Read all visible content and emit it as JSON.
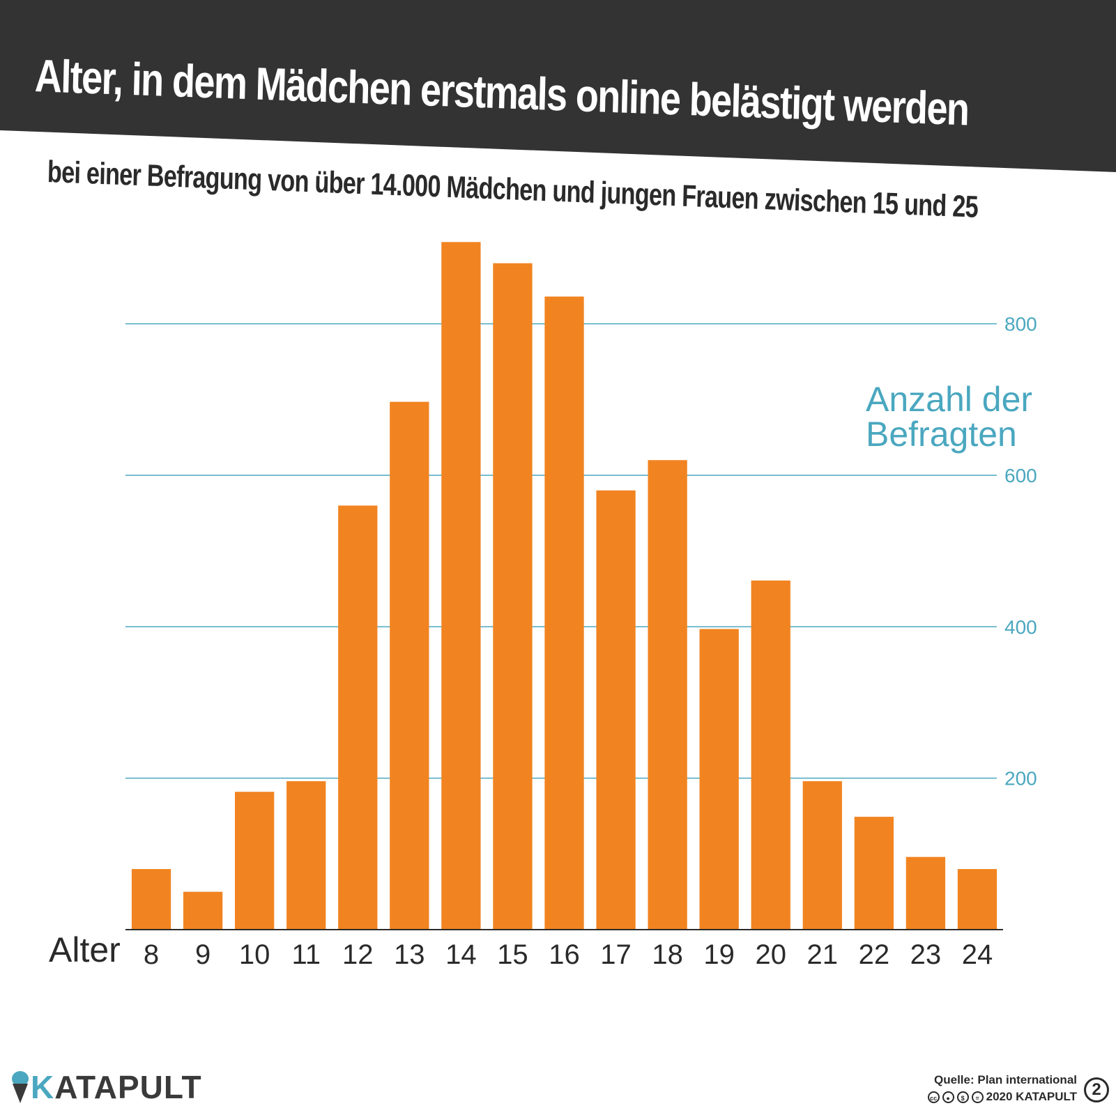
{
  "header": {
    "title": "Alter, in dem Mädchen erstmals online belästigt werden",
    "subtitle": "bei einer Befragung von über 14.000 Mädchen und jungen Frauen zwischen 15 und 25",
    "band_color": "#333333"
  },
  "chart_data": {
    "type": "bar",
    "title": "Alter, in dem Mädchen erstmals online belästigt werden",
    "subtitle": "bei einer Befragung von über 14.000 Mädchen und jungen Frauen zwischen 15 und 25",
    "xlabel": "Alter",
    "ylabel": "Anzahl der Befragten",
    "ylabel_lines": [
      "Anzahl der",
      "Befragten"
    ],
    "categories": [
      "8",
      "9",
      "10",
      "11",
      "12",
      "13",
      "14",
      "15",
      "16",
      "17",
      "18",
      "19",
      "20",
      "21",
      "22",
      "23",
      "24"
    ],
    "values": [
      80,
      50,
      182,
      196,
      560,
      697,
      908,
      880,
      836,
      580,
      620,
      397,
      461,
      196,
      149,
      96,
      80
    ],
    "ylim": [
      0,
      900
    ],
    "yticks": [
      200,
      400,
      600,
      800
    ],
    "grid": true,
    "y_axis_side": "right",
    "bar_color": "#f18421",
    "grid_color": "#4aa7bf"
  },
  "footer": {
    "logo_letter": "K",
    "logo_rest": "ATAPULT",
    "source": "Quelle: Plan international",
    "copyright": "2020 KATAPULT",
    "license_icons": [
      "cc",
      "by",
      "nc",
      "nd"
    ],
    "issue_number": "2"
  }
}
